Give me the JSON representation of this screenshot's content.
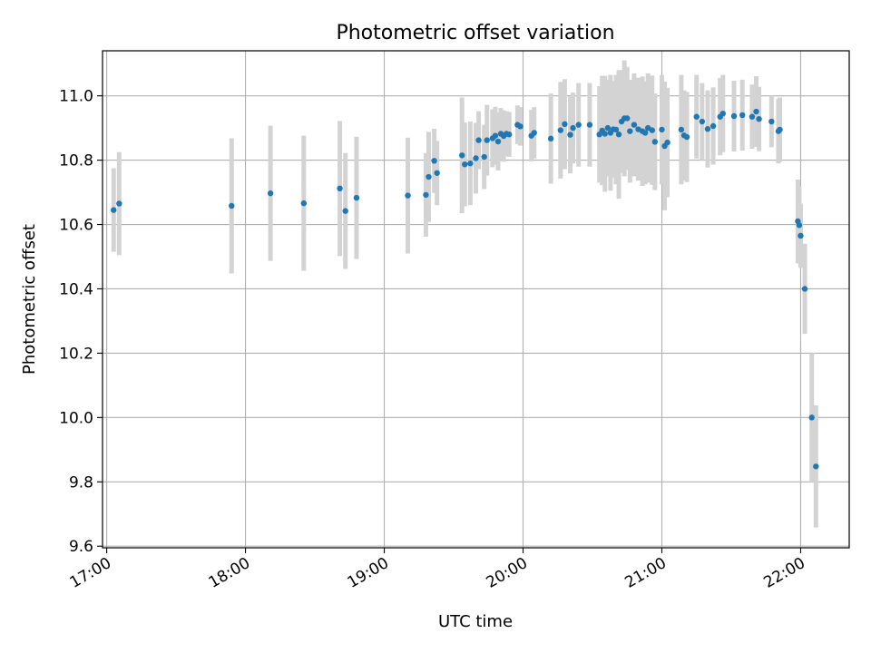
{
  "chart_data": {
    "type": "scatter",
    "title": "Photometric offset variation",
    "xlabel": "UTC time",
    "ylabel": "Photometric offset",
    "x_unit": "hour",
    "xlim": [
      16.97,
      22.35
    ],
    "ylim": [
      9.595,
      11.14
    ],
    "x_ticks": [
      17,
      18,
      19,
      20,
      21,
      22
    ],
    "x_tick_labels": [
      "17:00",
      "18:00",
      "19:00",
      "20:00",
      "21:00",
      "22:00"
    ],
    "y_ticks": [
      9.6,
      9.8,
      10.0,
      10.2,
      10.4,
      10.6,
      10.8,
      11.0
    ],
    "y_tick_labels": [
      "9.6",
      "9.8",
      "10.0",
      "10.2",
      "10.4",
      "10.6",
      "10.8",
      "11.0"
    ],
    "grid": true,
    "colors": {
      "point": "#1f77b4",
      "errorbar": "#d3d3d3",
      "grid": "#b0b0b0"
    },
    "series": [
      {
        "x": [
          17.05,
          17.09,
          17.9,
          18.18,
          18.42,
          18.68,
          18.72,
          18.8,
          19.17,
          19.3,
          19.32,
          19.36,
          19.38,
          19.56,
          19.58,
          19.62,
          19.66,
          19.68,
          19.72,
          19.74,
          19.78,
          19.8,
          19.82,
          19.84,
          19.86,
          19.88,
          19.9,
          19.96,
          19.98,
          20.06,
          20.08,
          20.2,
          20.27,
          20.3,
          20.34,
          20.36,
          20.4,
          20.48,
          20.55,
          20.57,
          20.59,
          20.61,
          20.63,
          20.65,
          20.67,
          20.69,
          20.71,
          20.73,
          20.75,
          20.77,
          20.8,
          20.83,
          20.86,
          20.88,
          20.9,
          20.93,
          20.95,
          21.0,
          21.02,
          21.04,
          21.14,
          21.16,
          21.18,
          21.25,
          21.29,
          21.33,
          21.37,
          21.42,
          21.44,
          21.52,
          21.58,
          21.65,
          21.68,
          21.7,
          21.79,
          21.84,
          21.85,
          21.98,
          21.99,
          22.0,
          22.03,
          22.08,
          22.11
        ],
        "y": [
          10.645,
          10.665,
          10.658,
          10.697,
          10.666,
          10.712,
          10.642,
          10.683,
          10.69,
          10.692,
          10.748,
          10.798,
          10.76,
          10.815,
          10.787,
          10.79,
          10.806,
          10.862,
          10.81,
          10.862,
          10.868,
          10.876,
          10.858,
          10.882,
          10.875,
          10.882,
          10.88,
          10.91,
          10.905,
          10.876,
          10.885,
          10.867,
          10.893,
          10.912,
          10.879,
          10.9,
          10.91,
          10.91,
          10.88,
          10.892,
          10.882,
          10.9,
          10.885,
          10.896,
          10.895,
          10.88,
          10.92,
          10.93,
          10.93,
          10.89,
          10.91,
          10.896,
          10.89,
          10.885,
          10.9,
          10.893,
          10.857,
          10.895,
          10.844,
          10.855,
          10.895,
          10.877,
          10.872,
          10.935,
          10.92,
          10.897,
          10.906,
          10.935,
          10.945,
          10.937,
          10.94,
          10.935,
          10.951,
          10.928,
          10.92,
          10.89,
          10.895,
          10.61,
          10.598,
          10.565,
          10.4,
          10.0,
          9.848
        ],
        "yerr": [
          0.13,
          0.16,
          0.21,
          0.21,
          0.21,
          0.21,
          0.18,
          0.19,
          0.18,
          0.13,
          0.14,
          0.1,
          0.1,
          0.18,
          0.13,
          0.13,
          0.11,
          0.09,
          0.1,
          0.11,
          0.09,
          0.09,
          0.09,
          0.08,
          0.08,
          0.07,
          0.07,
          0.06,
          0.06,
          0.08,
          0.08,
          0.14,
          0.15,
          0.14,
          0.12,
          0.11,
          0.13,
          0.13,
          0.15,
          0.17,
          0.18,
          0.15,
          0.18,
          0.15,
          0.17,
          0.2,
          0.16,
          0.18,
          0.16,
          0.16,
          0.16,
          0.16,
          0.17,
          0.16,
          0.17,
          0.17,
          0.15,
          0.17,
          0.2,
          0.17,
          0.17,
          0.14,
          0.14,
          0.13,
          0.12,
          0.12,
          0.12,
          0.12,
          0.12,
          0.11,
          0.11,
          0.1,
          0.11,
          0.1,
          0.08,
          0.1,
          0.1,
          0.13,
          0.12,
          0.1,
          0.14,
          0.2,
          0.19
        ]
      }
    ]
  }
}
